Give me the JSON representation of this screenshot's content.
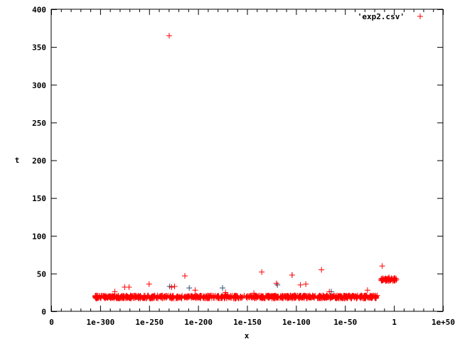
{
  "chart_data": {
    "type": "scatter",
    "title": "",
    "xlabel": "x",
    "ylabel": "t",
    "x_scale": "log10",
    "x_ticks": [
      {
        "label": "0",
        "exp": -350
      },
      {
        "label": "1e-300",
        "exp": -300
      },
      {
        "label": "1e-250",
        "exp": -250
      },
      {
        "label": "1e-200",
        "exp": -200
      },
      {
        "label": "1e-150",
        "exp": -150
      },
      {
        "label": "1e-100",
        "exp": -100
      },
      {
        "label": "1e-50",
        "exp": -50
      },
      {
        "label": "1",
        "exp": 0
      },
      {
        "label": "1e+50",
        "exp": 50
      }
    ],
    "xlim_exp": [
      -350,
      50
    ],
    "ylim": [
      0,
      400
    ],
    "y_ticks": [
      "0",
      "50",
      "100",
      "150",
      "200",
      "250",
      "300",
      "350",
      "400"
    ],
    "grid": false,
    "legend": {
      "position": "top-right",
      "entries": [
        {
          "name": "'exp2.csv'",
          "color": "#ff0000"
        }
      ]
    },
    "marker": "+",
    "colors": {
      "series": "#ff0000",
      "secondary": "#2f4f6f"
    },
    "dense_bands": [
      {
        "x_exp_range": [
          -305,
          -17
        ],
        "t_range": [
          17,
          21
        ]
      },
      {
        "x_exp_range": [
          -13,
          3
        ],
        "t_range": [
          40,
          44
        ]
      }
    ],
    "points": [
      {
        "x_exp": -229.5,
        "t": 365
      },
      {
        "x_exp": -213.5,
        "t": 47
      },
      {
        "x_exp": -135,
        "t": 52
      },
      {
        "x_exp": -104,
        "t": 48
      },
      {
        "x_exp": -74,
        "t": 55
      },
      {
        "x_exp": -12,
        "t": 60
      },
      {
        "x_exp": -250,
        "t": 36
      },
      {
        "x_exp": -275,
        "t": 32
      },
      {
        "x_exp": -270.5,
        "t": 32
      },
      {
        "x_exp": -227,
        "t": 32
      },
      {
        "x_exp": -224,
        "t": 33
      },
      {
        "x_exp": -120,
        "t": 37
      },
      {
        "x_exp": -95.5,
        "t": 35
      },
      {
        "x_exp": -90,
        "t": 36
      },
      {
        "x_exp": -27,
        "t": 28
      },
      {
        "x_exp": -203,
        "t": 28
      },
      {
        "x_exp": -285,
        "t": 26
      },
      {
        "x_exp": -172,
        "t": 25
      },
      {
        "x_exp": -143,
        "t": 24
      },
      {
        "x_exp": -66,
        "t": 26
      },
      {
        "x_exp": -5,
        "t": 45
      }
    ],
    "secondary_points": [
      {
        "x_exp": -104,
        "t": 48
      },
      {
        "x_exp": -175,
        "t": 31
      },
      {
        "x_exp": -209,
        "t": 31
      },
      {
        "x_exp": -229,
        "t": 33
      },
      {
        "x_exp": -64,
        "t": 26
      },
      {
        "x_exp": -119,
        "t": 35
      }
    ]
  }
}
